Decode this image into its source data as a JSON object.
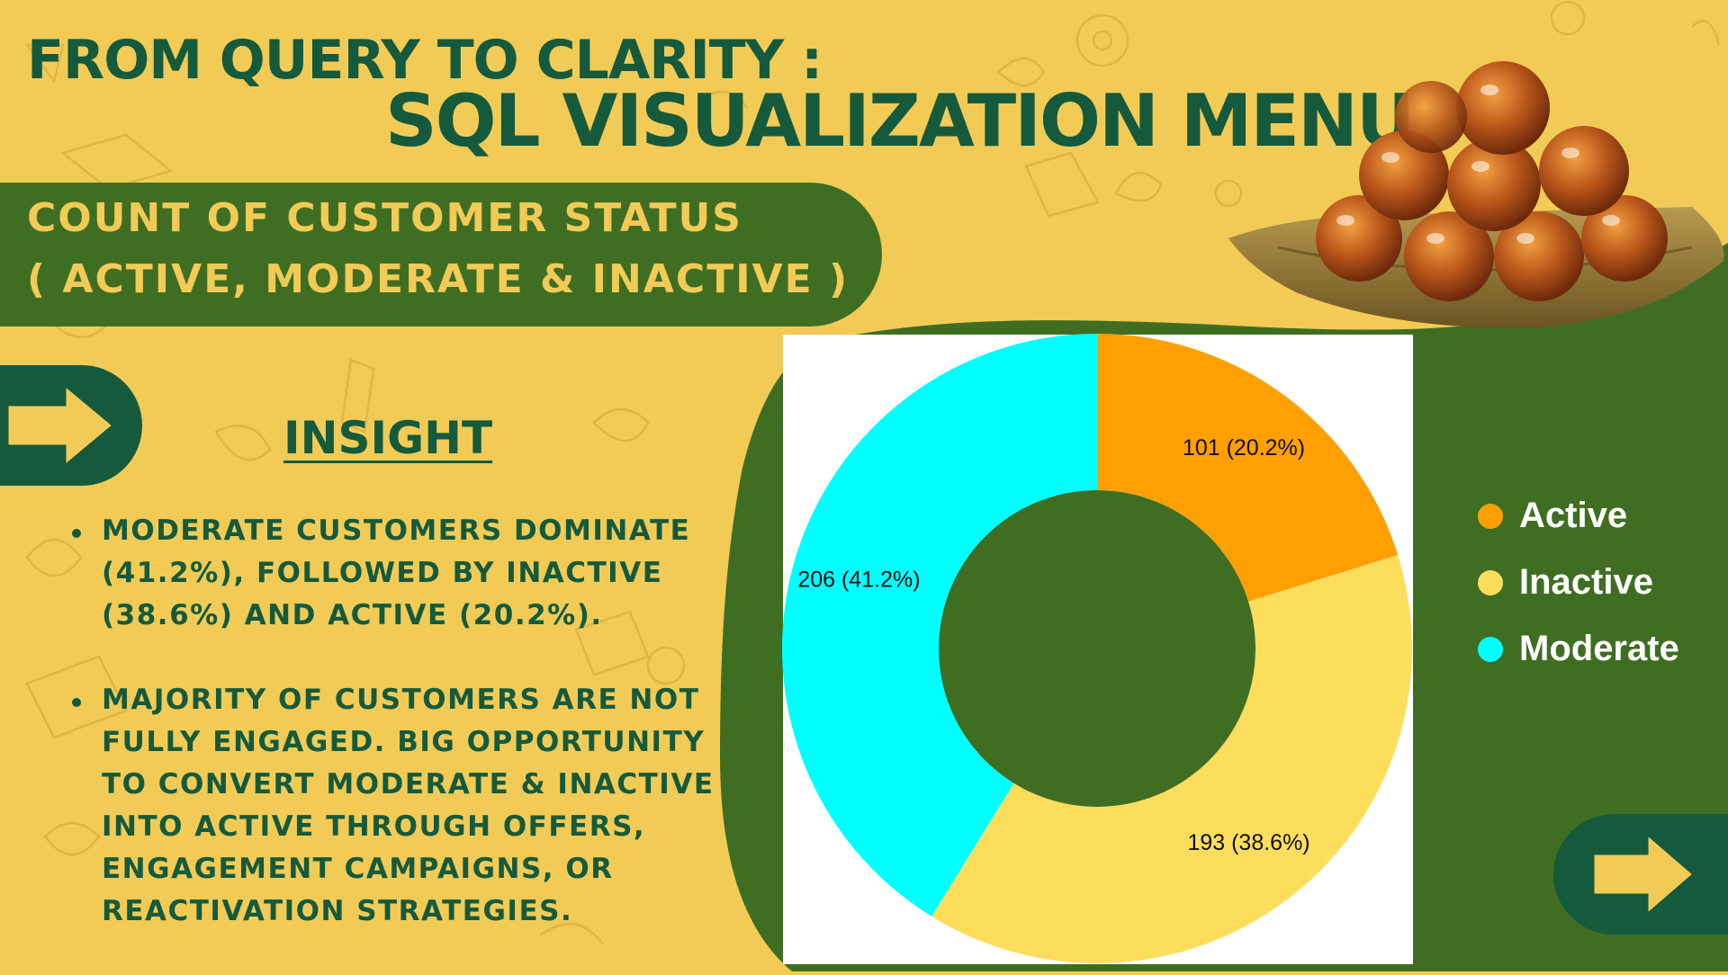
{
  "header": {
    "title_line1": "FROM QUERY TO CLARITY :",
    "title_line2": "SQL VISUALIZATION MENU"
  },
  "banner": {
    "line1": "COUNT OF CUSTOMER STATUS",
    "line2": "( ACTIVE, MODERATE & INACTIVE )"
  },
  "insight": {
    "heading": "INSIGHT",
    "points": [
      "MODERATE CUSTOMERS DOMINATE (41.2%), FOLLOWED BY INACTIVE (38.6%) AND ACTIVE (20.2%).",
      "MAJORITY OF CUSTOMERS ARE NOT FULLY ENGAGED. BIG OPPORTUNITY TO CONVERT MODERATE & INACTIVE INTO ACTIVE THROUGH OFFERS, ENGAGEMENT CAMPAIGNS, OR REACTIVATION STRATEGIES."
    ]
  },
  "navigation": {
    "left_icon": "arrow-right-icon",
    "right_icon": "arrow-right-icon"
  },
  "colors": {
    "background": "#F2CB56",
    "dark_green": "#155A3C",
    "banner_green": "#3F6E22",
    "active": "#FF9F00",
    "inactive": "#FDDD5C",
    "moderate": "#00FFFF"
  },
  "chart_data": {
    "type": "pie",
    "title": "",
    "donut": true,
    "start": "top, clockwise",
    "categories": [
      "Active",
      "Inactive",
      "Moderate"
    ],
    "values": [
      101,
      193,
      206
    ],
    "percentages": [
      20.2,
      38.6,
      41.2
    ],
    "labels": [
      "101 (20.2%)",
      "193 (38.6%)",
      "206 (41.2%)"
    ],
    "colors": [
      "#FF9F00",
      "#FDDD5C",
      "#00FFFF"
    ],
    "legend": {
      "position": "right",
      "items": [
        "Active",
        "Inactive",
        "Moderate"
      ]
    }
  }
}
